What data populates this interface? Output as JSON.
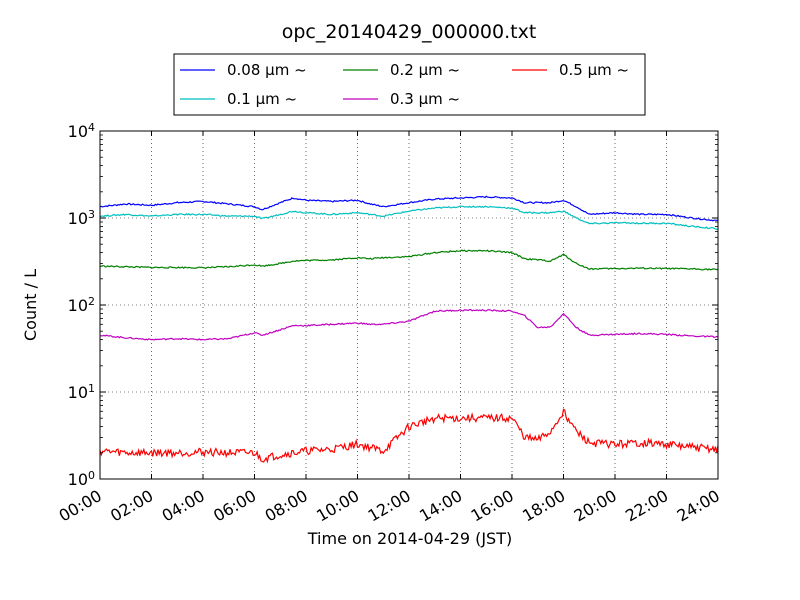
{
  "chart_data": {
    "type": "line",
    "title": "opc_20140429_000000.txt",
    "xlabel": "Time on 2014-04-29 (JST)",
    "ylabel": "Count / L",
    "yscale": "log",
    "ylim": [
      1,
      10000
    ],
    "xlim": [
      "00:00",
      "24:00"
    ],
    "x_ticks": [
      "00:00",
      "02:00",
      "04:00",
      "06:00",
      "08:00",
      "10:00",
      "12:00",
      "14:00",
      "16:00",
      "18:00",
      "20:00",
      "22:00",
      "24:00"
    ],
    "y_ticks": [
      {
        "base": "10",
        "exp": "0"
      },
      {
        "base": "10",
        "exp": "1"
      },
      {
        "base": "10",
        "exp": "2"
      },
      {
        "base": "10",
        "exp": "3"
      },
      {
        "base": "10",
        "exp": "4"
      }
    ],
    "grid": true,
    "legend_position": "top (above plot)",
    "x_hours": [
      0,
      1,
      2,
      3,
      4,
      5,
      6,
      6.3,
      7,
      7.5,
      8,
      9,
      10,
      10.5,
      11,
      12,
      13,
      14,
      15,
      16,
      16.5,
      17,
      17.5,
      18,
      18.5,
      19,
      20,
      21,
      22,
      23,
      24
    ],
    "series": [
      {
        "name": "0.08 μm ~",
        "color": "#0000ff",
        "values": [
          1350,
          1450,
          1400,
          1500,
          1550,
          1450,
          1350,
          1250,
          1500,
          1700,
          1600,
          1550,
          1600,
          1450,
          1350,
          1500,
          1650,
          1700,
          1750,
          1700,
          1500,
          1500,
          1500,
          1600,
          1350,
          1100,
          1150,
          1100,
          1100,
          1000,
          930
        ]
      },
      {
        "name": "0.1 μm ~",
        "color": "#00bfbf",
        "values": [
          1050,
          1100,
          1050,
          1100,
          1100,
          1050,
          1050,
          980,
          1100,
          1200,
          1150,
          1100,
          1150,
          1100,
          1050,
          1200,
          1300,
          1350,
          1350,
          1300,
          1150,
          1150,
          1150,
          1200,
          1000,
          860,
          880,
          870,
          870,
          800,
          750
        ]
      },
      {
        "name": "0.2 μm ~",
        "color": "#008000",
        "values": [
          280,
          275,
          270,
          270,
          268,
          275,
          290,
          280,
          300,
          320,
          325,
          330,
          350,
          340,
          350,
          360,
          400,
          420,
          420,
          400,
          340,
          330,
          320,
          380,
          300,
          260,
          262,
          265,
          262,
          260,
          255
        ]
      },
      {
        "name": "0.3 μm ~",
        "color": "#bf00bf",
        "values": [
          45,
          42,
          40,
          41,
          40,
          41,
          48,
          45,
          52,
          58,
          58,
          60,
          62,
          60,
          60,
          65,
          85,
          87,
          87,
          85,
          75,
          55,
          56,
          80,
          55,
          45,
          46,
          47,
          46,
          44,
          43
        ]
      },
      {
        "name": "0.5 μm ~",
        "color": "#ff0000",
        "values": [
          2.1,
          2.0,
          2.0,
          2.0,
          2.05,
          2.0,
          2.0,
          1.7,
          1.9,
          2.0,
          2.1,
          2.2,
          2.5,
          2.3,
          2.1,
          4.0,
          5.0,
          5.0,
          5.0,
          5.0,
          3.0,
          2.8,
          3.5,
          6.0,
          3.5,
          2.6,
          2.5,
          2.6,
          2.5,
          2.3,
          2.2
        ]
      }
    ]
  }
}
